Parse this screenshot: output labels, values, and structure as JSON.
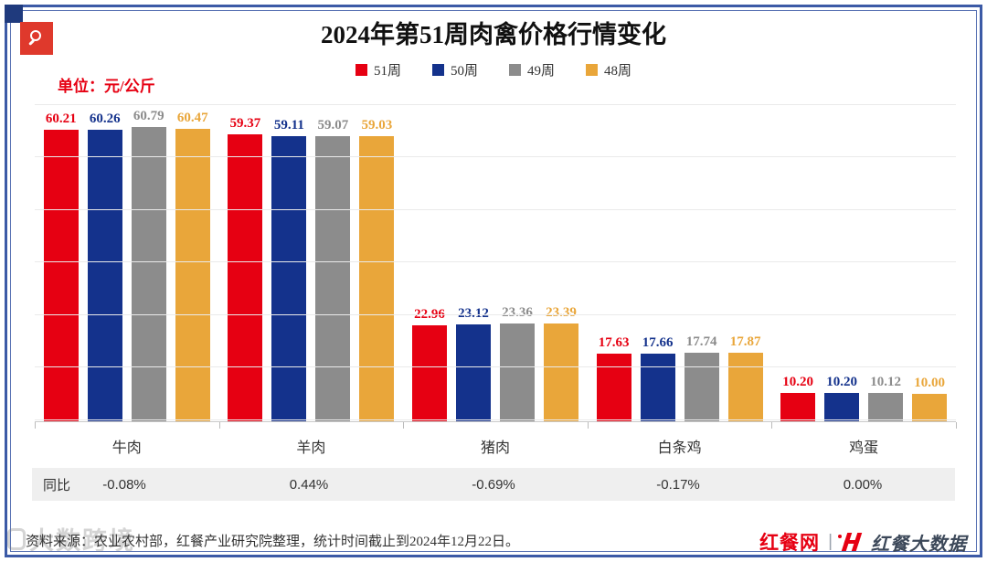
{
  "meta": {
    "title": "2024年第51周肉禽价格行情变化",
    "unit_label": "单位：元/公斤",
    "source_note": "资料来源：农业农村部，红餐产业研究院整理，统计时间截止到2024年12月22日。",
    "watermark_text": "大数跨境"
  },
  "branding": {
    "site_name": "红餐网",
    "separator": "|",
    "data_brand": "红餐大数据",
    "brand_red": "#e60012",
    "brand_dark": "#3c4859"
  },
  "chart_data": {
    "type": "bar",
    "title": "2024年第51周肉禽价格行情变化",
    "unit": "元/公斤",
    "categories": [
      "牛肉",
      "羊肉",
      "猪肉",
      "白条鸡",
      "鸡蛋"
    ],
    "series": [
      {
        "name": "51周",
        "color": "#e60012",
        "values": [
          60.21,
          59.37,
          22.96,
          17.63,
          10.2
        ]
      },
      {
        "name": "50周",
        "color": "#14328c",
        "values": [
          60.26,
          59.11,
          23.12,
          17.66,
          10.2
        ]
      },
      {
        "name": "49周",
        "color": "#8c8c8c",
        "values": [
          60.79,
          59.07,
          23.36,
          17.74,
          10.12
        ]
      },
      {
        "name": "48周",
        "color": "#e9a63a",
        "values": [
          60.47,
          59.03,
          23.39,
          17.87,
          10.0
        ]
      }
    ],
    "value_decimals": 2,
    "yoy_row": {
      "label": "同比",
      "values": [
        "-0.08%",
        "0.44%",
        "-0.69%",
        "-0.17%",
        "0.00%"
      ]
    },
    "ylim": [
      4.75,
      66
    ],
    "gridline_values": [
      5,
      15,
      25,
      35,
      45,
      55,
      65
    ],
    "grid": true,
    "legend_position": "top",
    "axis_color": "#c9c9c9",
    "grid_color": "#eaeaea"
  }
}
